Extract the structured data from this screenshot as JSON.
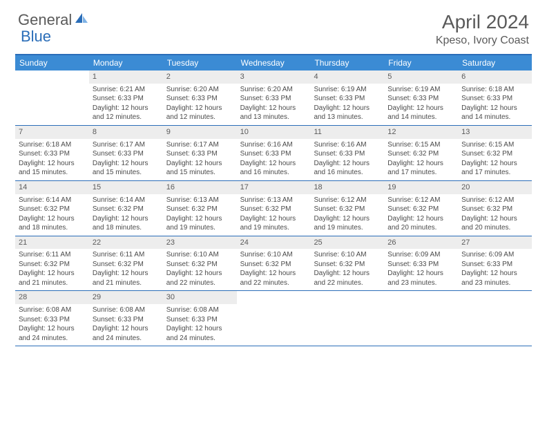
{
  "logo": {
    "general": "General",
    "blue": "Blue"
  },
  "title": "April 2024",
  "location": "Kpeso, Ivory Coast",
  "colors": {
    "header_bar": "#3b8bd4",
    "border": "#2a6db8",
    "daynum_bg": "#ededed",
    "text": "#4a4a4a",
    "logo_blue": "#2a6db8"
  },
  "weekdays": [
    "Sunday",
    "Monday",
    "Tuesday",
    "Wednesday",
    "Thursday",
    "Friday",
    "Saturday"
  ],
  "weeks": [
    [
      null,
      {
        "n": "1",
        "sr": "Sunrise: 6:21 AM",
        "ss": "Sunset: 6:33 PM",
        "d1": "Daylight: 12 hours",
        "d2": "and 12 minutes."
      },
      {
        "n": "2",
        "sr": "Sunrise: 6:20 AM",
        "ss": "Sunset: 6:33 PM",
        "d1": "Daylight: 12 hours",
        "d2": "and 12 minutes."
      },
      {
        "n": "3",
        "sr": "Sunrise: 6:20 AM",
        "ss": "Sunset: 6:33 PM",
        "d1": "Daylight: 12 hours",
        "d2": "and 13 minutes."
      },
      {
        "n": "4",
        "sr": "Sunrise: 6:19 AM",
        "ss": "Sunset: 6:33 PM",
        "d1": "Daylight: 12 hours",
        "d2": "and 13 minutes."
      },
      {
        "n": "5",
        "sr": "Sunrise: 6:19 AM",
        "ss": "Sunset: 6:33 PM",
        "d1": "Daylight: 12 hours",
        "d2": "and 14 minutes."
      },
      {
        "n": "6",
        "sr": "Sunrise: 6:18 AM",
        "ss": "Sunset: 6:33 PM",
        "d1": "Daylight: 12 hours",
        "d2": "and 14 minutes."
      }
    ],
    [
      {
        "n": "7",
        "sr": "Sunrise: 6:18 AM",
        "ss": "Sunset: 6:33 PM",
        "d1": "Daylight: 12 hours",
        "d2": "and 15 minutes."
      },
      {
        "n": "8",
        "sr": "Sunrise: 6:17 AM",
        "ss": "Sunset: 6:33 PM",
        "d1": "Daylight: 12 hours",
        "d2": "and 15 minutes."
      },
      {
        "n": "9",
        "sr": "Sunrise: 6:17 AM",
        "ss": "Sunset: 6:33 PM",
        "d1": "Daylight: 12 hours",
        "d2": "and 15 minutes."
      },
      {
        "n": "10",
        "sr": "Sunrise: 6:16 AM",
        "ss": "Sunset: 6:33 PM",
        "d1": "Daylight: 12 hours",
        "d2": "and 16 minutes."
      },
      {
        "n": "11",
        "sr": "Sunrise: 6:16 AM",
        "ss": "Sunset: 6:33 PM",
        "d1": "Daylight: 12 hours",
        "d2": "and 16 minutes."
      },
      {
        "n": "12",
        "sr": "Sunrise: 6:15 AM",
        "ss": "Sunset: 6:32 PM",
        "d1": "Daylight: 12 hours",
        "d2": "and 17 minutes."
      },
      {
        "n": "13",
        "sr": "Sunrise: 6:15 AM",
        "ss": "Sunset: 6:32 PM",
        "d1": "Daylight: 12 hours",
        "d2": "and 17 minutes."
      }
    ],
    [
      {
        "n": "14",
        "sr": "Sunrise: 6:14 AM",
        "ss": "Sunset: 6:32 PM",
        "d1": "Daylight: 12 hours",
        "d2": "and 18 minutes."
      },
      {
        "n": "15",
        "sr": "Sunrise: 6:14 AM",
        "ss": "Sunset: 6:32 PM",
        "d1": "Daylight: 12 hours",
        "d2": "and 18 minutes."
      },
      {
        "n": "16",
        "sr": "Sunrise: 6:13 AM",
        "ss": "Sunset: 6:32 PM",
        "d1": "Daylight: 12 hours",
        "d2": "and 19 minutes."
      },
      {
        "n": "17",
        "sr": "Sunrise: 6:13 AM",
        "ss": "Sunset: 6:32 PM",
        "d1": "Daylight: 12 hours",
        "d2": "and 19 minutes."
      },
      {
        "n": "18",
        "sr": "Sunrise: 6:12 AM",
        "ss": "Sunset: 6:32 PM",
        "d1": "Daylight: 12 hours",
        "d2": "and 19 minutes."
      },
      {
        "n": "19",
        "sr": "Sunrise: 6:12 AM",
        "ss": "Sunset: 6:32 PM",
        "d1": "Daylight: 12 hours",
        "d2": "and 20 minutes."
      },
      {
        "n": "20",
        "sr": "Sunrise: 6:12 AM",
        "ss": "Sunset: 6:32 PM",
        "d1": "Daylight: 12 hours",
        "d2": "and 20 minutes."
      }
    ],
    [
      {
        "n": "21",
        "sr": "Sunrise: 6:11 AM",
        "ss": "Sunset: 6:32 PM",
        "d1": "Daylight: 12 hours",
        "d2": "and 21 minutes."
      },
      {
        "n": "22",
        "sr": "Sunrise: 6:11 AM",
        "ss": "Sunset: 6:32 PM",
        "d1": "Daylight: 12 hours",
        "d2": "and 21 minutes."
      },
      {
        "n": "23",
        "sr": "Sunrise: 6:10 AM",
        "ss": "Sunset: 6:32 PM",
        "d1": "Daylight: 12 hours",
        "d2": "and 22 minutes."
      },
      {
        "n": "24",
        "sr": "Sunrise: 6:10 AM",
        "ss": "Sunset: 6:32 PM",
        "d1": "Daylight: 12 hours",
        "d2": "and 22 minutes."
      },
      {
        "n": "25",
        "sr": "Sunrise: 6:10 AM",
        "ss": "Sunset: 6:32 PM",
        "d1": "Daylight: 12 hours",
        "d2": "and 22 minutes."
      },
      {
        "n": "26",
        "sr": "Sunrise: 6:09 AM",
        "ss": "Sunset: 6:33 PM",
        "d1": "Daylight: 12 hours",
        "d2": "and 23 minutes."
      },
      {
        "n": "27",
        "sr": "Sunrise: 6:09 AM",
        "ss": "Sunset: 6:33 PM",
        "d1": "Daylight: 12 hours",
        "d2": "and 23 minutes."
      }
    ],
    [
      {
        "n": "28",
        "sr": "Sunrise: 6:08 AM",
        "ss": "Sunset: 6:33 PM",
        "d1": "Daylight: 12 hours",
        "d2": "and 24 minutes."
      },
      {
        "n": "29",
        "sr": "Sunrise: 6:08 AM",
        "ss": "Sunset: 6:33 PM",
        "d1": "Daylight: 12 hours",
        "d2": "and 24 minutes."
      },
      {
        "n": "30",
        "sr": "Sunrise: 6:08 AM",
        "ss": "Sunset: 6:33 PM",
        "d1": "Daylight: 12 hours",
        "d2": "and 24 minutes."
      },
      null,
      null,
      null,
      null
    ]
  ]
}
